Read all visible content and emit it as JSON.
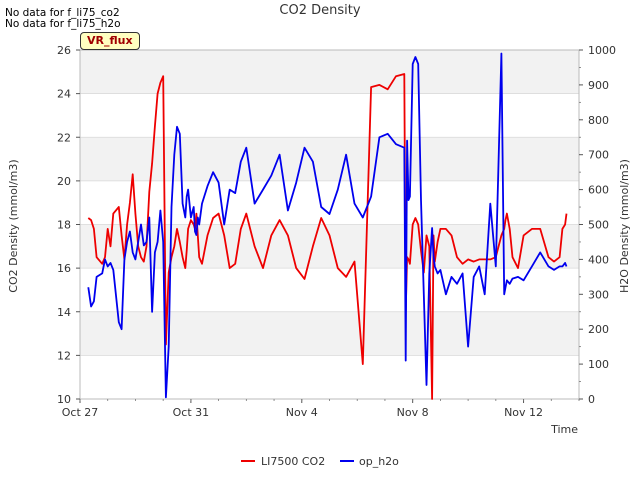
{
  "notes": [
    "No data for f_li75_co2",
    "No data for f_li75_h2o"
  ],
  "badge": "VR_flux",
  "colors": {
    "co2": "#ee0000",
    "h2o": "#0000ee",
    "band": "#f2f2f2",
    "grid": "#d8d8d8"
  },
  "chart_data": {
    "type": "line",
    "title": "CO2 Density",
    "xlabel": "Time",
    "ylabel": "CO2 Density (mmol/m3)",
    "y2label": "H2O Density (mmol/m3)",
    "xlim": [
      0,
      18
    ],
    "ylim": [
      10,
      26
    ],
    "y2lim": [
      0,
      1000
    ],
    "x_ticks": [
      {
        "pos": 0,
        "label": "Oct 27"
      },
      {
        "pos": 4,
        "label": "Oct 31"
      },
      {
        "pos": 8,
        "label": "Nov 4"
      },
      {
        "pos": 12,
        "label": "Nov 8"
      },
      {
        "pos": 16,
        "label": "Nov 12"
      }
    ],
    "y_ticks": [
      10,
      12,
      14,
      16,
      18,
      20,
      22,
      24,
      26
    ],
    "y2_ticks": [
      0,
      100,
      200,
      300,
      400,
      500,
      600,
      700,
      800,
      900,
      1000
    ],
    "legend": [
      "LI7500 CO2",
      "op_h2o"
    ],
    "legend_position": "bottom-center",
    "series": [
      {
        "name": "LI7500 CO2",
        "axis": "left",
        "x": [
          0.3,
          0.4,
          0.5,
          0.6,
          0.8,
          0.9,
          1.0,
          1.1,
          1.2,
          1.4,
          1.5,
          1.6,
          1.7,
          1.8,
          1.9,
          2.0,
          2.1,
          2.2,
          2.3,
          2.4,
          2.5,
          2.6,
          2.7,
          2.8,
          2.9,
          3.0,
          3.1,
          3.2,
          3.3,
          3.4,
          3.5,
          3.6,
          3.7,
          3.8,
          3.85,
          3.9,
          4.0,
          4.1,
          4.15,
          4.2,
          4.25,
          4.3,
          4.4,
          4.6,
          4.8,
          5.0,
          5.2,
          5.4,
          5.6,
          5.8,
          6.0,
          6.3,
          6.6,
          6.9,
          7.2,
          7.5,
          7.8,
          8.1,
          8.4,
          8.7,
          9.0,
          9.3,
          9.6,
          9.9,
          10.2,
          10.5,
          10.8,
          11.1,
          11.4,
          11.7,
          11.75,
          11.8,
          11.85,
          11.9,
          12.0,
          12.1,
          12.2,
          12.3,
          12.4,
          12.5,
          12.6,
          12.7,
          12.75,
          12.8,
          12.9,
          13.0,
          13.2,
          13.4,
          13.6,
          13.8,
          14.0,
          14.2,
          14.4,
          14.6,
          14.8,
          15.0,
          15.2,
          15.3,
          15.35,
          15.4,
          15.5,
          15.6,
          15.8,
          16.0,
          16.3,
          16.6,
          16.9,
          17.1,
          17.3,
          17.4,
          17.5,
          17.55
        ],
        "values": [
          18.3,
          18.2,
          17.8,
          16.5,
          16.2,
          16.5,
          17.8,
          17.0,
          18.5,
          18.8,
          17.5,
          16.4,
          18.0,
          19.0,
          20.3,
          18.5,
          17.0,
          16.5,
          16.3,
          17.0,
          19.5,
          20.8,
          22.5,
          24.0,
          24.5,
          24.8,
          12.5,
          15.8,
          16.5,
          17.0,
          17.8,
          17.2,
          16.5,
          16.0,
          16.8,
          17.8,
          18.2,
          18.0,
          17.8,
          18.5,
          17.5,
          16.5,
          16.2,
          17.5,
          18.3,
          18.5,
          17.5,
          16.0,
          16.2,
          17.8,
          18.5,
          17.0,
          16.0,
          17.5,
          18.2,
          17.5,
          16.0,
          15.5,
          17.0,
          18.3,
          17.5,
          16.0,
          15.6,
          16.3,
          11.6,
          24.3,
          24.4,
          24.2,
          24.8,
          24.9,
          14.0,
          16.5,
          16.4,
          16.2,
          18.0,
          18.3,
          18.0,
          16.8,
          15.8,
          17.5,
          17.0,
          10.0,
          17.5,
          16.3,
          17.2,
          17.8,
          17.8,
          17.5,
          16.5,
          16.2,
          16.4,
          16.3,
          16.4,
          16.4,
          16.4,
          16.5,
          17.5,
          17.8,
          18.2,
          18.5,
          17.8,
          16.5,
          16.0,
          17.5,
          17.8,
          17.8,
          16.5,
          16.3,
          16.5,
          17.8,
          18.0,
          18.5
        ]
      },
      {
        "name": "op_h2o",
        "axis": "right",
        "x": [
          0.3,
          0.4,
          0.5,
          0.6,
          0.8,
          0.9,
          1.0,
          1.1,
          1.2,
          1.4,
          1.5,
          1.6,
          1.7,
          1.8,
          1.9,
          2.0,
          2.1,
          2.2,
          2.3,
          2.4,
          2.5,
          2.6,
          2.7,
          2.8,
          2.9,
          3.0,
          3.1,
          3.2,
          3.3,
          3.4,
          3.5,
          3.6,
          3.7,
          3.8,
          3.85,
          3.9,
          4.0,
          4.1,
          4.15,
          4.2,
          4.25,
          4.3,
          4.4,
          4.6,
          4.8,
          5.0,
          5.2,
          5.4,
          5.6,
          5.8,
          6.0,
          6.3,
          6.6,
          6.9,
          7.2,
          7.5,
          7.8,
          8.1,
          8.4,
          8.7,
          9.0,
          9.3,
          9.6,
          9.9,
          10.2,
          10.5,
          10.8,
          11.1,
          11.4,
          11.7,
          11.75,
          11.8,
          11.85,
          11.9,
          12.0,
          12.1,
          12.2,
          12.3,
          12.4,
          12.5,
          12.6,
          12.7,
          12.75,
          12.8,
          12.9,
          13.0,
          13.2,
          13.4,
          13.6,
          13.8,
          14.0,
          14.2,
          14.4,
          14.6,
          14.8,
          15.0,
          15.2,
          15.3,
          15.35,
          15.4,
          15.5,
          15.6,
          15.8,
          16.0,
          16.3,
          16.6,
          16.9,
          17.1,
          17.3,
          17.4,
          17.5,
          17.55
        ],
        "values": [
          320,
          265,
          280,
          350,
          360,
          400,
          380,
          390,
          370,
          220,
          200,
          400,
          450,
          480,
          420,
          400,
          450,
          500,
          440,
          450,
          520,
          250,
          420,
          450,
          540,
          450,
          5,
          150,
          550,
          700,
          780,
          760,
          560,
          520,
          580,
          600,
          520,
          550,
          480,
          470,
          520,
          500,
          560,
          610,
          650,
          620,
          500,
          600,
          590,
          680,
          720,
          560,
          600,
          640,
          700,
          540,
          620,
          720,
          680,
          550,
          530,
          600,
          700,
          560,
          520,
          580,
          750,
          760,
          730,
          720,
          110,
          740,
          570,
          580,
          960,
          980,
          960,
          570,
          300,
          40,
          360,
          490,
          410,
          380,
          360,
          370,
          300,
          350,
          330,
          360,
          150,
          350,
          380,
          300,
          560,
          380,
          990,
          300,
          320,
          340,
          330,
          345,
          350,
          340,
          380,
          420,
          380,
          370,
          380,
          380,
          390,
          380
        ]
      }
    ]
  }
}
